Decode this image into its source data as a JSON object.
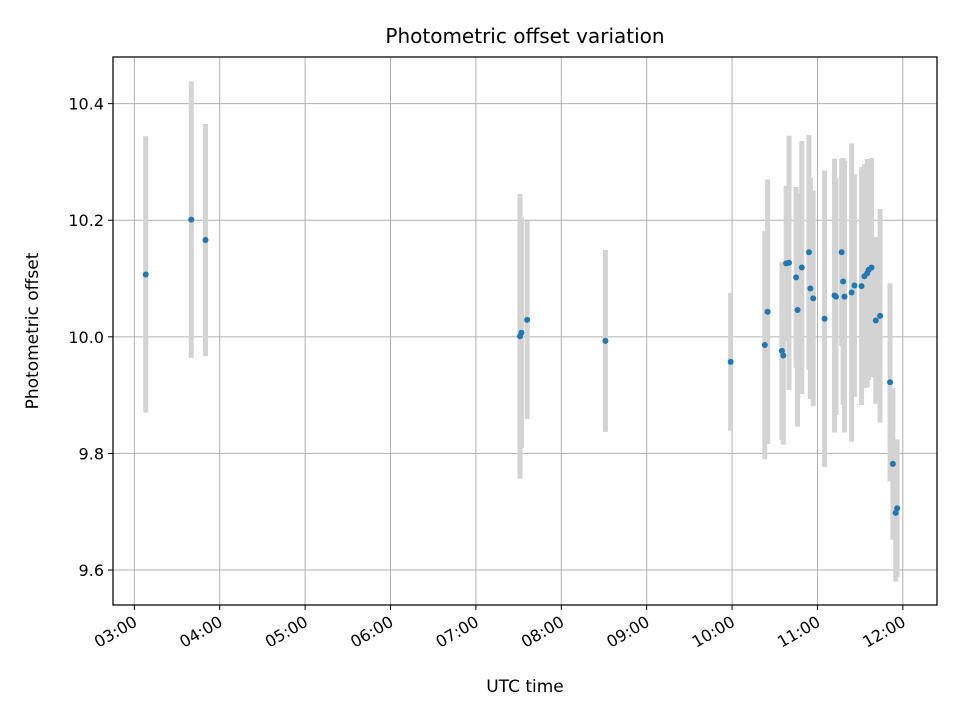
{
  "chart_data": {
    "type": "scatter",
    "title": "Photometric offset variation",
    "xlabel": "UTC time",
    "ylabel": "Photometric offset",
    "x_unit": "UTC time of day (HH:MM)",
    "xlim": [
      "02:45",
      "12:24"
    ],
    "ylim": [
      9.54,
      10.48
    ],
    "x_ticks": [
      "03:00",
      "04:00",
      "05:00",
      "06:00",
      "07:00",
      "08:00",
      "09:00",
      "10:00",
      "11:00",
      "12:00"
    ],
    "y_ticks": [
      9.6,
      9.8,
      10.0,
      10.2,
      10.4
    ],
    "y_tick_labels": [
      "9.6",
      "9.8",
      "10.0",
      "10.2",
      "10.4"
    ],
    "grid": true,
    "x_tick_rotation": "30deg",
    "colors": {
      "point": "#1f77b4",
      "errorbar": "#d3d3d3",
      "grid": "#b0b0b0"
    },
    "points": [
      {
        "x": "03:08",
        "y": 10.107,
        "err": 0.237
      },
      {
        "x": "03:40",
        "y": 10.201,
        "err": 0.237
      },
      {
        "x": "03:50",
        "y": 10.166,
        "err": 0.199
      },
      {
        "x": "07:31",
        "y": 10.001,
        "err": 0.244
      },
      {
        "x": "07:32",
        "y": 10.007,
        "err": 0.198
      },
      {
        "x": "07:36",
        "y": 10.029,
        "err": 0.17
      },
      {
        "x": "08:31",
        "y": 9.993,
        "err": 0.156
      },
      {
        "x": "09:59",
        "y": 9.957,
        "err": 0.118
      },
      {
        "x": "10:23",
        "y": 9.986,
        "err": 0.196
      },
      {
        "x": "10:25",
        "y": 10.043,
        "err": 0.227
      },
      {
        "x": "10:35",
        "y": 9.976,
        "err": 0.153
      },
      {
        "x": "10:36",
        "y": 9.968,
        "err": 0.153
      },
      {
        "x": "10:38",
        "y": 10.126,
        "err": 0.133
      },
      {
        "x": "10:40",
        "y": 10.127,
        "err": 0.218
      },
      {
        "x": "10:45",
        "y": 10.102,
        "err": 0.155
      },
      {
        "x": "10:46",
        "y": 10.046,
        "err": 0.2
      },
      {
        "x": "10:49",
        "y": 10.119,
        "err": 0.217
      },
      {
        "x": "10:54",
        "y": 10.145,
        "err": 0.201
      },
      {
        "x": "10:55",
        "y": 10.083,
        "err": 0.19
      },
      {
        "x": "10:57",
        "y": 10.066,
        "err": 0.185
      },
      {
        "x": "11:05",
        "y": 10.031,
        "err": 0.254
      },
      {
        "x": "11:12",
        "y": 10.071,
        "err": 0.235
      },
      {
        "x": "11:13",
        "y": 10.069,
        "err": 0.203
      },
      {
        "x": "11:17",
        "y": 10.145,
        "err": 0.16
      },
      {
        "x": "11:18",
        "y": 10.095,
        "err": 0.212
      },
      {
        "x": "11:19",
        "y": 10.069,
        "err": 0.233
      },
      {
        "x": "11:24",
        "y": 10.076,
        "err": 0.256
      },
      {
        "x": "11:26",
        "y": 10.088,
        "err": 0.191
      },
      {
        "x": "11:31",
        "y": 10.087,
        "err": 0.204
      },
      {
        "x": "11:33",
        "y": 10.104,
        "err": 0.192
      },
      {
        "x": "11:35",
        "y": 10.109,
        "err": 0.196
      },
      {
        "x": "11:36",
        "y": 10.115,
        "err": 0.189
      },
      {
        "x": "11:38",
        "y": 10.119,
        "err": 0.188
      },
      {
        "x": "11:41",
        "y": 10.028,
        "err": 0.143
      },
      {
        "x": "11:44",
        "y": 10.036,
        "err": 0.183
      },
      {
        "x": "11:51",
        "y": 9.922,
        "err": 0.17
      },
      {
        "x": "11:53",
        "y": 9.782,
        "err": 0.13
      },
      {
        "x": "11:55",
        "y": 9.698,
        "err": 0.118
      },
      {
        "x": "11:56",
        "y": 9.706,
        "err": 0.118
      }
    ]
  }
}
